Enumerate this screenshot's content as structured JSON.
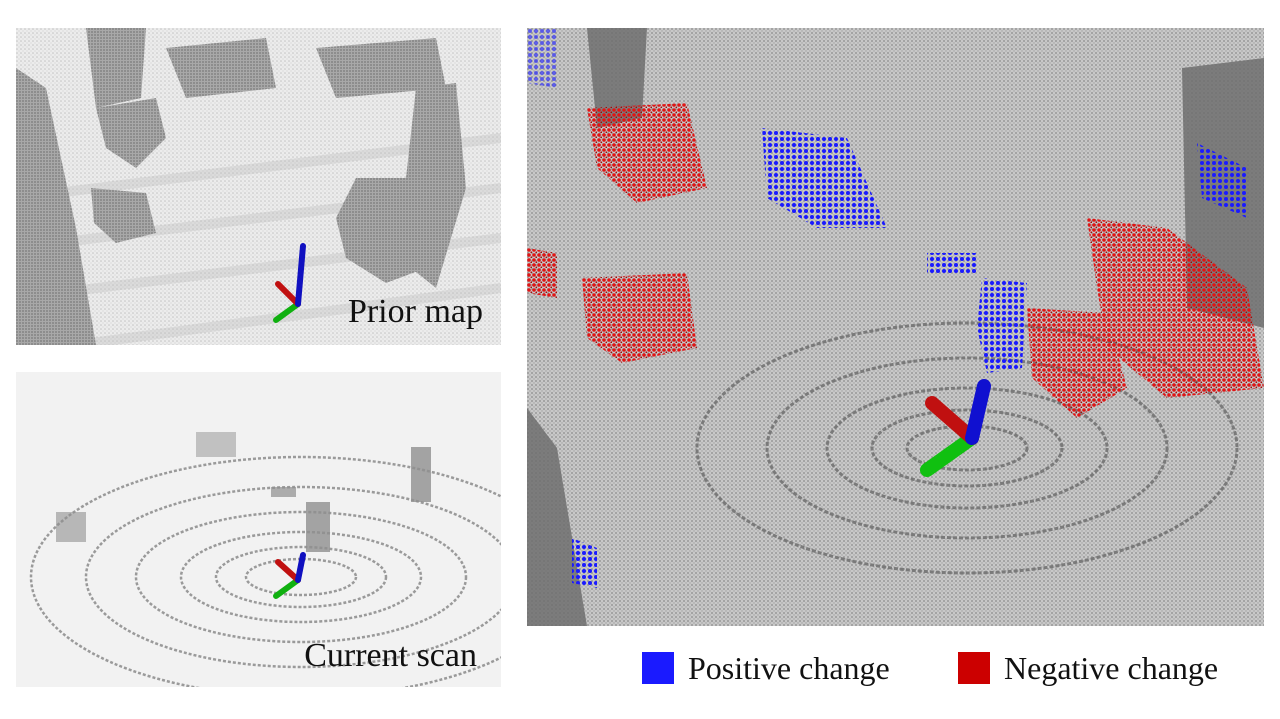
{
  "panels": {
    "prior_map": {
      "label": "Prior map"
    },
    "current_scan": {
      "label": "Current scan"
    },
    "change_map": {}
  },
  "legend": {
    "positive": {
      "label": "Positive change",
      "color": "#1a1aff"
    },
    "negative": {
      "label": "Negative change",
      "color": "#cc0000"
    }
  },
  "colors": {
    "point_gray": "#8a8a8a",
    "axis_x": "#d01010",
    "axis_y": "#10c010",
    "axis_z": "#1010d0"
  }
}
